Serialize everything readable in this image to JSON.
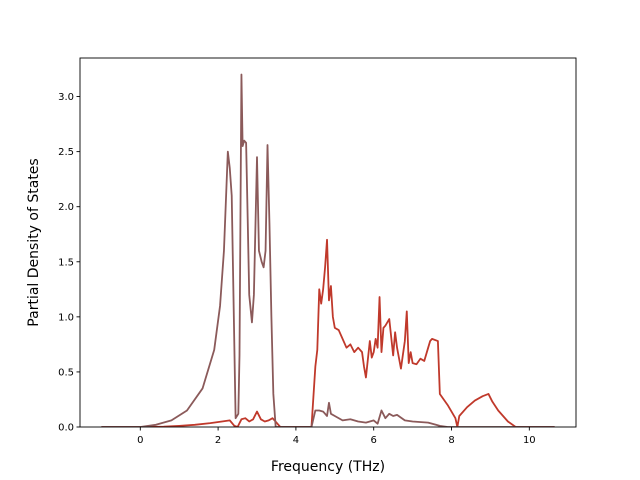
{
  "chart_data": {
    "type": "line",
    "title": "",
    "xlabel": "Frequency (THz)",
    "ylabel": "Partial Density of States",
    "xlim": [
      -1.55,
      11.2
    ],
    "ylim": [
      0.0,
      3.35
    ],
    "xticks": [
      0,
      2,
      4,
      6,
      8,
      10
    ],
    "yticks": [
      0.0,
      0.5,
      1.0,
      1.5,
      2.0,
      2.5,
      3.0
    ],
    "grid": false,
    "legend": "none",
    "series": [
      {
        "color": "#c0392b",
        "x": [
          -1.0,
          0.0,
          0.6,
          1.0,
          1.4,
          1.8,
          2.1,
          2.3,
          2.42,
          2.5,
          2.6,
          2.7,
          2.8,
          2.9,
          3.0,
          3.1,
          3.2,
          3.3,
          3.4,
          3.5,
          3.6,
          4.4,
          4.5,
          4.55,
          4.6,
          4.65,
          4.7,
          4.75,
          4.8,
          4.85,
          4.9,
          4.95,
          5.0,
          5.1,
          5.2,
          5.3,
          5.4,
          5.5,
          5.6,
          5.7,
          5.75,
          5.8,
          5.9,
          5.95,
          6.0,
          6.05,
          6.1,
          6.15,
          6.2,
          6.25,
          6.3,
          6.4,
          6.5,
          6.55,
          6.6,
          6.7,
          6.8,
          6.85,
          6.9,
          6.95,
          7.0,
          7.1,
          7.2,
          7.3,
          7.4,
          7.45,
          7.5,
          7.65,
          7.7,
          7.9,
          8.1,
          8.15,
          8.2,
          8.4,
          8.6,
          8.8,
          8.95,
          9.05,
          9.2,
          9.45,
          9.65,
          9.8,
          10.65
        ],
        "y": [
          0.0,
          0.0,
          0.003,
          0.01,
          0.02,
          0.035,
          0.05,
          0.06,
          0.01,
          0.0,
          0.07,
          0.08,
          0.05,
          0.07,
          0.14,
          0.07,
          0.05,
          0.06,
          0.08,
          0.04,
          0.0,
          0.0,
          0.55,
          0.7,
          1.25,
          1.12,
          1.25,
          1.45,
          1.7,
          1.15,
          1.28,
          1.0,
          0.9,
          0.88,
          0.8,
          0.72,
          0.75,
          0.68,
          0.72,
          0.68,
          0.55,
          0.45,
          0.78,
          0.63,
          0.68,
          0.8,
          0.72,
          1.18,
          0.68,
          0.9,
          0.92,
          0.98,
          0.65,
          0.86,
          0.72,
          0.53,
          0.78,
          1.05,
          0.58,
          0.68,
          0.58,
          0.57,
          0.62,
          0.6,
          0.72,
          0.78,
          0.8,
          0.78,
          0.3,
          0.2,
          0.08,
          0.0,
          0.1,
          0.18,
          0.24,
          0.28,
          0.3,
          0.23,
          0.15,
          0.05,
          0.0,
          0.0,
          0.0
        ]
      },
      {
        "color": "#8b5a5a",
        "x": [
          -1.0,
          0.0,
          0.4,
          0.8,
          1.2,
          1.6,
          1.9,
          2.05,
          2.15,
          2.25,
          2.3,
          2.35,
          2.45,
          2.52,
          2.55,
          2.6,
          2.63,
          2.67,
          2.72,
          2.76,
          2.8,
          2.87,
          2.92,
          3.0,
          3.05,
          3.12,
          3.17,
          3.22,
          3.27,
          3.32,
          3.37,
          3.42,
          3.48,
          3.55,
          3.62,
          3.7,
          4.4,
          4.5,
          4.6,
          4.7,
          4.8,
          4.85,
          4.9,
          5.0,
          5.2,
          5.4,
          5.6,
          5.8,
          6.0,
          6.1,
          6.2,
          6.3,
          6.4,
          6.5,
          6.6,
          6.8,
          7.0,
          7.4,
          7.6,
          7.7,
          7.9,
          8.1,
          8.2,
          10.65
        ],
        "y": [
          0.0,
          0.0,
          0.02,
          0.06,
          0.15,
          0.35,
          0.7,
          1.1,
          1.6,
          2.5,
          2.35,
          2.1,
          0.08,
          0.12,
          0.65,
          3.2,
          2.55,
          2.6,
          2.58,
          1.9,
          1.2,
          0.95,
          1.2,
          2.45,
          1.6,
          1.5,
          1.45,
          1.6,
          2.56,
          1.85,
          1.0,
          0.3,
          0.0,
          0.0,
          0.0,
          0.0,
          0.0,
          0.15,
          0.15,
          0.14,
          0.1,
          0.22,
          0.12,
          0.1,
          0.06,
          0.07,
          0.05,
          0.04,
          0.06,
          0.03,
          0.15,
          0.08,
          0.12,
          0.1,
          0.11,
          0.06,
          0.05,
          0.04,
          0.02,
          0.01,
          0.0,
          0.0,
          0.0,
          0.0
        ]
      }
    ]
  }
}
